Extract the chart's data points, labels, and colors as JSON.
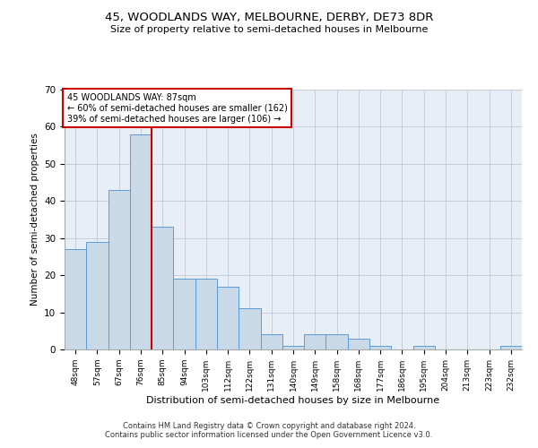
{
  "title": "45, WOODLANDS WAY, MELBOURNE, DERBY, DE73 8DR",
  "subtitle": "Size of property relative to semi-detached houses in Melbourne",
  "xlabel": "Distribution of semi-detached houses by size in Melbourne",
  "ylabel": "Number of semi-detached properties",
  "categories": [
    "48sqm",
    "57sqm",
    "67sqm",
    "76sqm",
    "85sqm",
    "94sqm",
    "103sqm",
    "112sqm",
    "122sqm",
    "131sqm",
    "140sqm",
    "149sqm",
    "158sqm",
    "168sqm",
    "177sqm",
    "186sqm",
    "195sqm",
    "204sqm",
    "213sqm",
    "223sqm",
    "232sqm"
  ],
  "values": [
    27,
    29,
    43,
    58,
    33,
    19,
    19,
    17,
    11,
    4,
    1,
    4,
    4,
    3,
    1,
    0,
    1,
    0,
    0,
    0,
    1
  ],
  "bar_color": "#c9d9e8",
  "bar_edge_color": "#5b9bd5",
  "property_line_color": "#cc0000",
  "property_value": "87sqm",
  "pct_smaller": 60,
  "n_smaller": 162,
  "pct_larger": 39,
  "n_larger": 106,
  "annotation_box_color": "#ffffff",
  "annotation_box_edge_color": "#cc0000",
  "ylim": [
    0,
    70
  ],
  "yticks": [
    0,
    10,
    20,
    30,
    40,
    50,
    60,
    70
  ],
  "grid_color": "#c0c8d8",
  "bg_color": "#e8eef6",
  "footer_line1": "Contains HM Land Registry data © Crown copyright and database right 2024.",
  "footer_line2": "Contains public sector information licensed under the Open Government Licence v3.0."
}
